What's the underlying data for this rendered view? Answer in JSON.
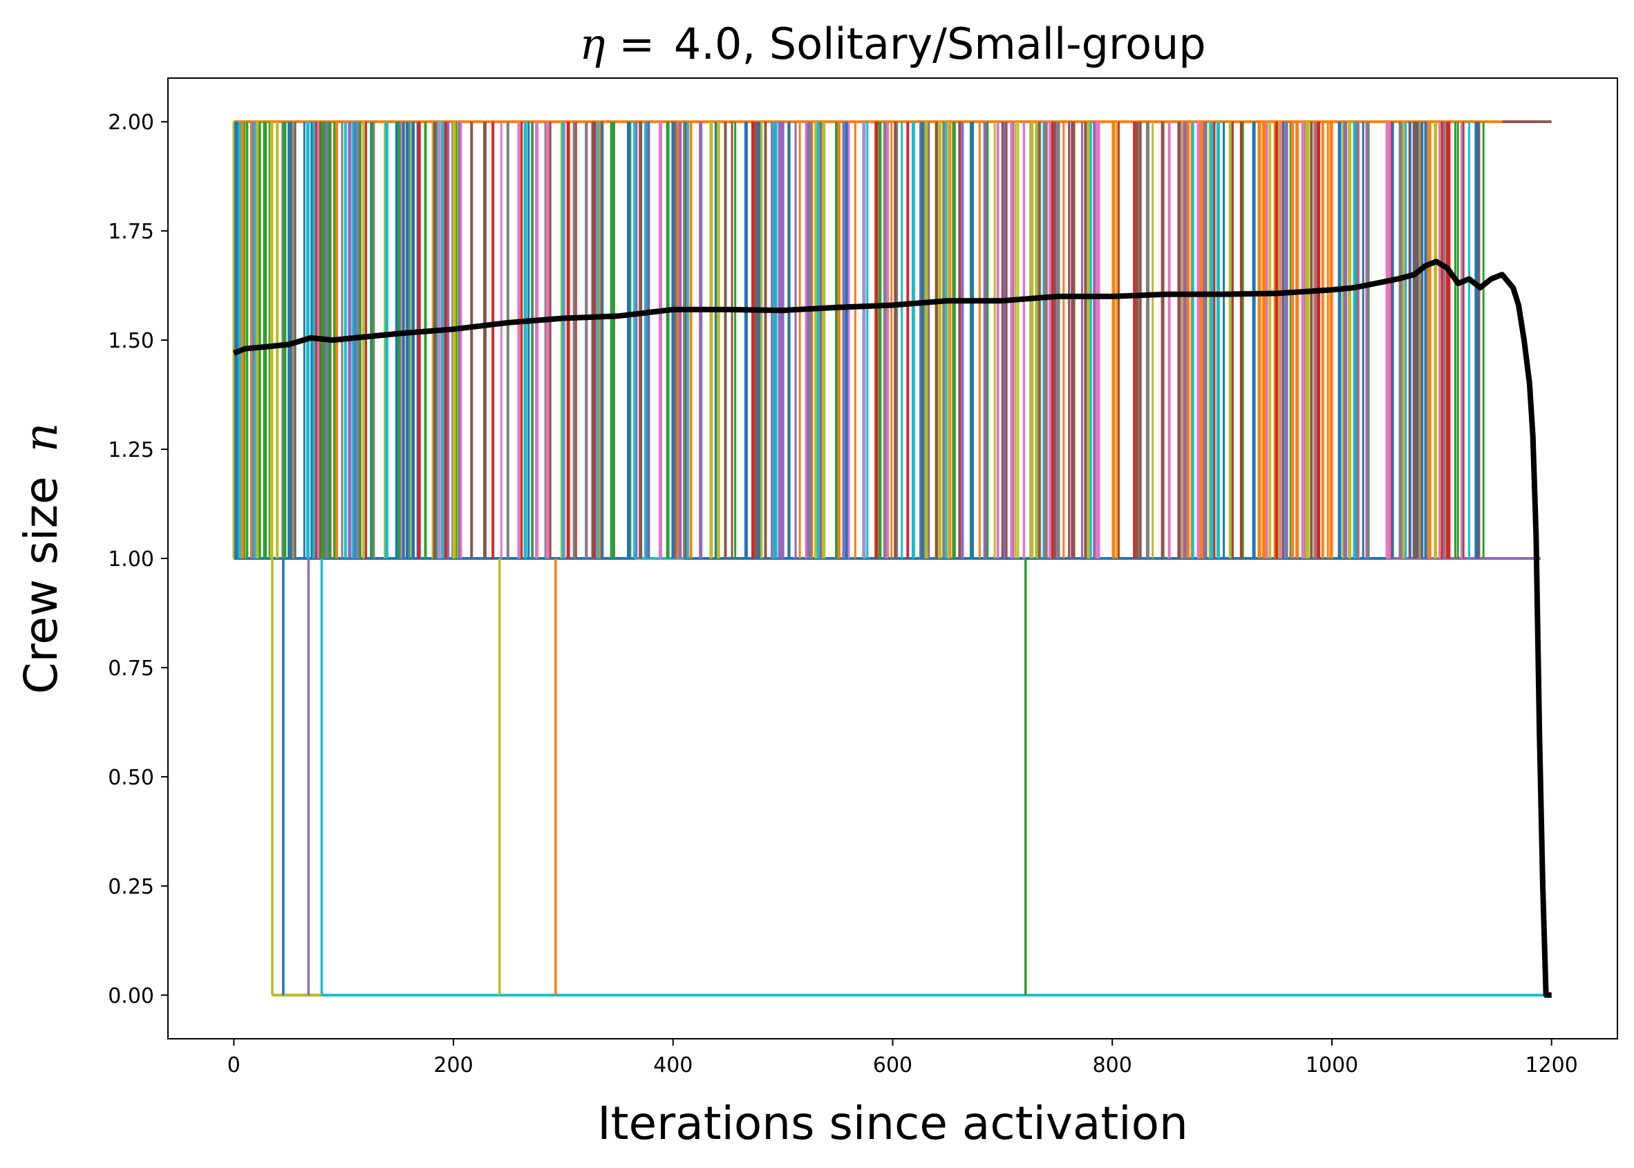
{
  "chart_data": {
    "type": "line",
    "title": {
      "eta_symbol": "η",
      "equals": "=",
      "text": "4.0, Solitary/Small-group"
    },
    "xlabel": "Iterations since activation",
    "ylabel": {
      "text": "Crew size",
      "symbol": "n"
    },
    "xlim": [
      -60,
      1260
    ],
    "ylim": [
      -0.1,
      2.1
    ],
    "xticks": [
      0,
      200,
      400,
      600,
      800,
      1000,
      1200
    ],
    "xtick_labels": [
      "0",
      "200",
      "400",
      "600",
      "800",
      "1000",
      "1200"
    ],
    "yticks": [
      0.0,
      0.25,
      0.5,
      0.75,
      1.0,
      1.25,
      1.5,
      1.75,
      2.0
    ],
    "ytick_labels": [
      "0.00",
      "0.25",
      "0.50",
      "0.75",
      "1.00",
      "1.25",
      "1.50",
      "1.75",
      "2.00"
    ],
    "grid": false,
    "palette": [
      "#1f77b4",
      "#ff7f0e",
      "#2ca02c",
      "#d62728",
      "#9467bd",
      "#8c564b",
      "#e377c2",
      "#7f7f7f",
      "#bcbd22",
      "#17becf"
    ],
    "individual_traces": {
      "description_levels": [
        0,
        1,
        2
      ],
      "x_range": [
        0,
        1200
      ],
      "switch_band_x": [
        0,
        1140
      ],
      "drop_to_zero": [
        {
          "x": 35,
          "color": "#bcbd22"
        },
        {
          "x": 45,
          "color": "#1f77b4"
        },
        {
          "x": 68,
          "color": "#9467bd"
        },
        {
          "x": 80,
          "color": "#17becf"
        },
        {
          "x": 242,
          "color": "#bcbd22"
        },
        {
          "x": 293,
          "color": "#ff7f0e"
        },
        {
          "x": 721,
          "color": "#2ca02c"
        }
      ]
    },
    "series": [
      {
        "color": "#000000",
        "x": [
          0,
          10,
          30,
          50,
          70,
          90,
          110,
          150,
          200,
          250,
          300,
          350,
          400,
          450,
          500,
          550,
          600,
          650,
          700,
          750,
          800,
          850,
          900,
          950,
          1000,
          1020,
          1040,
          1060,
          1075,
          1085,
          1095,
          1105,
          1115,
          1125,
          1135,
          1145,
          1155,
          1165,
          1170,
          1175,
          1180,
          1183,
          1186,
          1189,
          1192,
          1195,
          1200
        ],
        "y": [
          1.47,
          1.48,
          1.485,
          1.49,
          1.505,
          1.5,
          1.505,
          1.515,
          1.525,
          1.54,
          1.55,
          1.555,
          1.57,
          1.57,
          1.568,
          1.575,
          1.58,
          1.59,
          1.59,
          1.6,
          1.6,
          1.605,
          1.605,
          1.607,
          1.615,
          1.62,
          1.63,
          1.64,
          1.65,
          1.67,
          1.68,
          1.665,
          1.63,
          1.64,
          1.62,
          1.64,
          1.65,
          1.62,
          1.58,
          1.5,
          1.4,
          1.28,
          1.05,
          0.6,
          0.25,
          0.0,
          0.0
        ]
      }
    ]
  }
}
